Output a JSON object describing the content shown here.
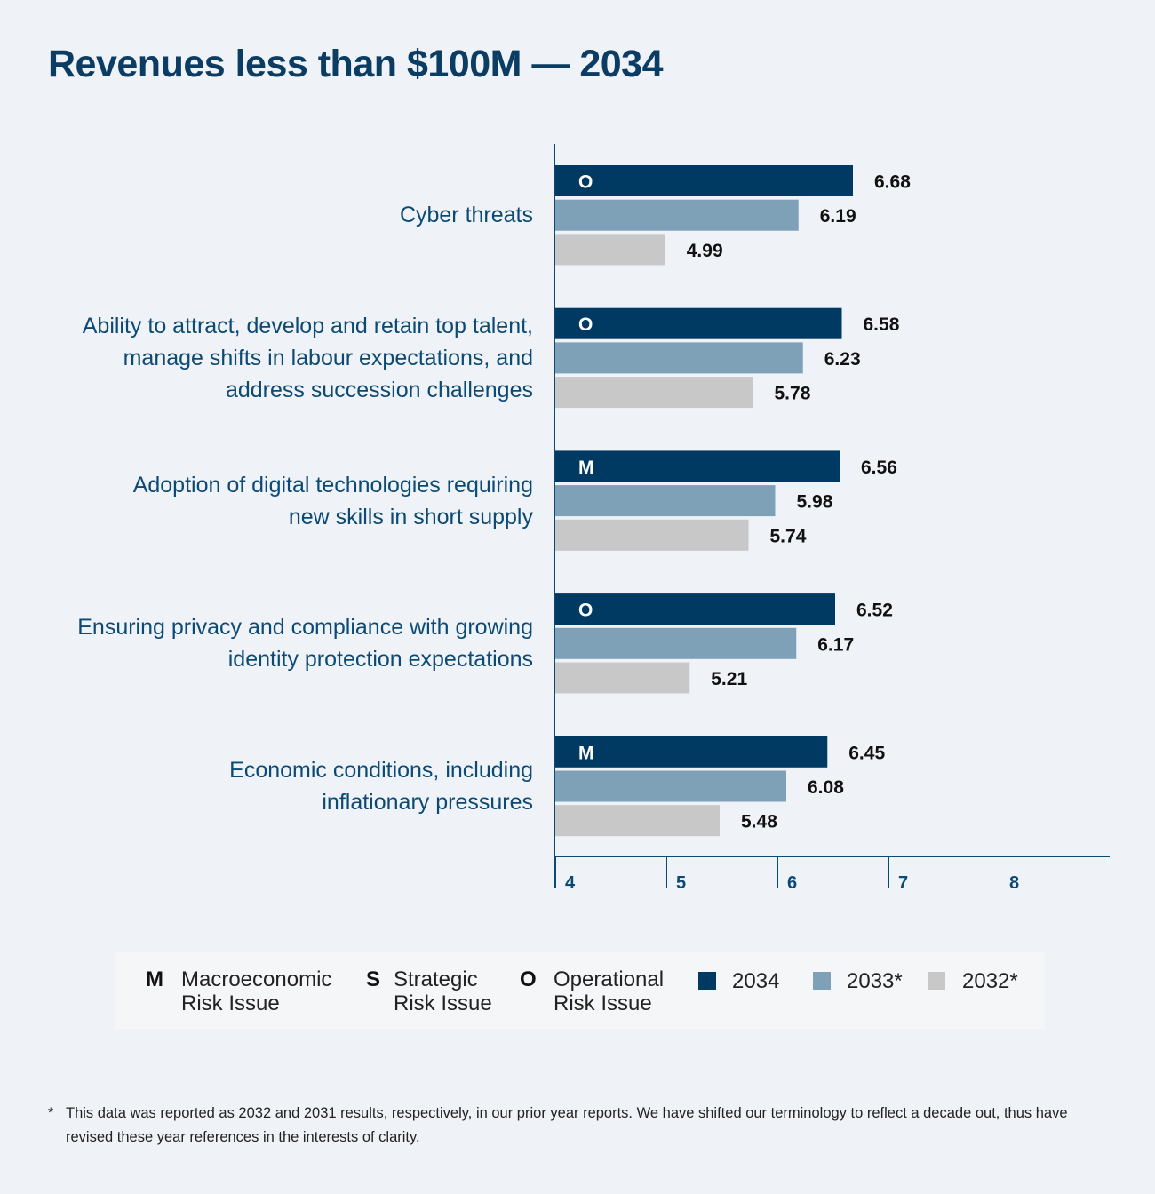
{
  "title": "Revenues less than $100M — 2034",
  "chart_data": {
    "type": "bar",
    "orientation": "horizontal",
    "categories": [
      "Cyber threats",
      "Ability to attract, develop and retain top talent, manage shifts in labour expectations, and address succession challenges",
      "Adoption of digital technologies requiring new skills in short supply",
      "Ensuring privacy and compliance with growing identity protection expectations",
      "Economic conditions, including inflationary pressures"
    ],
    "category_lines": [
      [
        "Cyber threats"
      ],
      [
        "Ability to attract, develop and retain top talent,",
        "manage shifts in labour expectations, and",
        "address succession challenges"
      ],
      [
        "Adoption of digital technologies requiring",
        "new skills in short supply"
      ],
      [
        "Ensuring privacy and compliance with growing",
        "identity protection expectations"
      ],
      [
        "Economic conditions, including",
        "inflationary pressures"
      ]
    ],
    "risk_type": [
      "O",
      "O",
      "M",
      "O",
      "M"
    ],
    "series": [
      {
        "name": "2034",
        "values": [
          6.68,
          6.58,
          6.56,
          6.52,
          6.45
        ],
        "color": "#003a63"
      },
      {
        "name": "2033*",
        "values": [
          6.19,
          6.23,
          5.98,
          6.17,
          6.08
        ],
        "color": "#7fa1b8"
      },
      {
        "name": "2032*",
        "values": [
          4.99,
          5.78,
          5.74,
          5.21,
          5.48
        ],
        "color": "#c8c8c8"
      }
    ],
    "xlim": [
      4,
      9
    ],
    "xticks": [
      "4",
      "5",
      "6",
      "7",
      "8"
    ],
    "grid": false,
    "legend_position": "bottom"
  },
  "legend": {
    "risk_types": [
      {
        "letter": "M",
        "line1": "Macroeconomic",
        "line2": "Risk Issue"
      },
      {
        "letter": "S",
        "line1": "Strategic",
        "line2": "Risk Issue"
      },
      {
        "letter": "O",
        "line1": "Operational",
        "line2": "Risk Issue"
      }
    ],
    "years": [
      {
        "label": "2034",
        "color": "#003a63"
      },
      {
        "label": "2033*",
        "color": "#7fa1b8"
      },
      {
        "label": "2032*",
        "color": "#c8c8c8"
      }
    ]
  },
  "footnote": {
    "marker": "*",
    "text": "This data was reported as 2032 and 2031 results, respectively, in our prior year reports. We have shifted our terminology to reflect a decade out, thus have revised these year references in the interests of clarity."
  }
}
